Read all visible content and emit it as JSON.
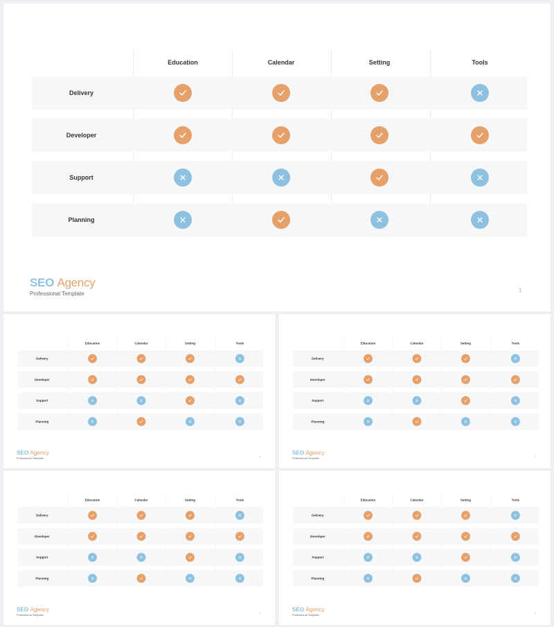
{
  "columns": [
    "Education",
    "Calendar",
    "Setting",
    "Tools"
  ],
  "rows": [
    {
      "label": "Delivery",
      "cells": [
        "check",
        "check",
        "check",
        "cross"
      ]
    },
    {
      "label": "Developer",
      "cells": [
        "check",
        "check",
        "check",
        "check"
      ]
    },
    {
      "label": "Support",
      "cells": [
        "cross",
        "cross",
        "check",
        "cross"
      ]
    },
    {
      "label": "Planning",
      "cells": [
        "cross",
        "check",
        "cross",
        "cross"
      ]
    }
  ],
  "brand": {
    "seo": "SEO",
    "agency": "Agency",
    "subtitle": "Professional Template"
  },
  "page_numbers": [
    "1",
    "2",
    "2",
    "2",
    "2"
  ],
  "colors": {
    "check": "#e6a06a",
    "cross": "#8ec1df",
    "row_bg": "#f6f7f9"
  },
  "icons": {
    "check": "check-icon",
    "cross": "close-icon"
  }
}
